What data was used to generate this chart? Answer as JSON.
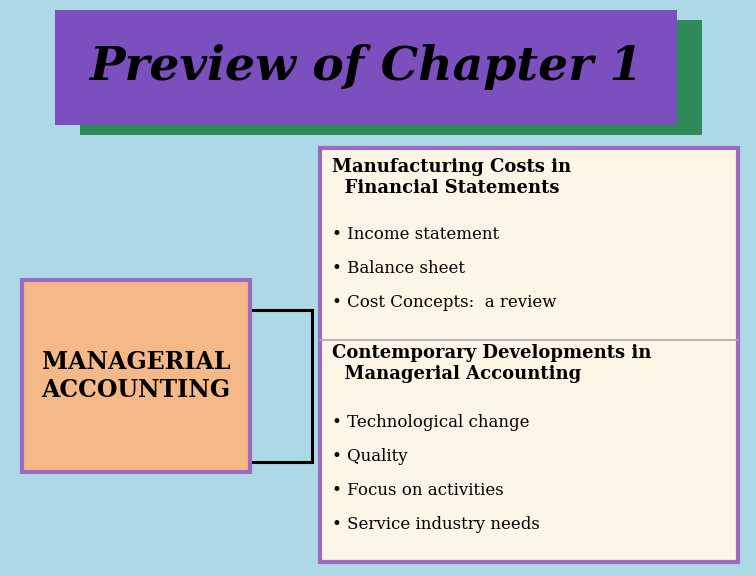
{
  "bg_color": "#add8e6",
  "title_text": "Preview of Chapter 1",
  "title_bg": "#7b4fbe",
  "title_shadow_color": "#2e8b57",
  "left_box_bg": "#f4b987",
  "left_box_border": "#9b6bbf",
  "left_box_text": "MANAGERIAL\nACCOUNTING",
  "right_box_bg": "#fdf5e6",
  "right_box_border": "#9b6bbf",
  "section1_title": "Manufacturing Costs in\n  Financial Statements",
  "section1_bullets": [
    "Income statement",
    "Balance sheet",
    "Cost Concepts:  a review"
  ],
  "section2_title": "Contemporary Developments in\n  Managerial Accounting",
  "section2_bullets": [
    "Technological change",
    "Quality",
    "Focus on activities",
    "Service industry needs"
  ],
  "divider_color": "#aaaaaa",
  "line_color": "#000000"
}
